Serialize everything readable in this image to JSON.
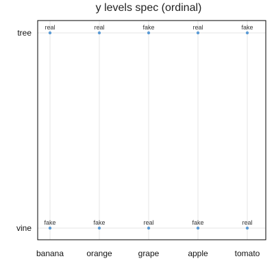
{
  "chart_data": {
    "type": "scatter",
    "title": "y levels spec (ordinal)",
    "xlabel": "",
    "ylabel": "",
    "x_categories": [
      "banana",
      "orange",
      "grape",
      "apple",
      "tomato"
    ],
    "y_categories": [
      "vine",
      "tree"
    ],
    "points": [
      {
        "x": "banana",
        "y": "tree",
        "label": "real"
      },
      {
        "x": "orange",
        "y": "tree",
        "label": "real"
      },
      {
        "x": "grape",
        "y": "tree",
        "label": "fake"
      },
      {
        "x": "apple",
        "y": "tree",
        "label": "real"
      },
      {
        "x": "tomato",
        "y": "tree",
        "label": "fake"
      },
      {
        "x": "banana",
        "y": "vine",
        "label": "fake"
      },
      {
        "x": "orange",
        "y": "vine",
        "label": "fake"
      },
      {
        "x": "grape",
        "y": "vine",
        "label": "real"
      },
      {
        "x": "apple",
        "y": "vine",
        "label": "fake"
      },
      {
        "x": "tomato",
        "y": "vine",
        "label": "real"
      }
    ],
    "grid": true,
    "legend": "none",
    "point_color": "#5b9bd5"
  }
}
